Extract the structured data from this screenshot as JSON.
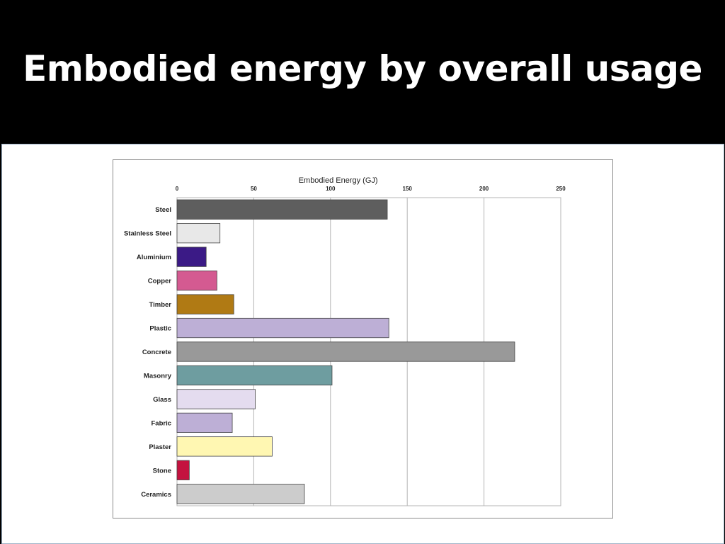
{
  "slide": {
    "title": "Embodied energy by overall usage"
  },
  "chart_data": {
    "type": "bar",
    "orientation": "horizontal",
    "xlabel": "Embodied Energy  (GJ)",
    "xlabel_position": "top",
    "xlim": [
      0,
      250
    ],
    "xticks": [
      0,
      50,
      100,
      150,
      200,
      250
    ],
    "grid": true,
    "categories": [
      "Steel",
      "Stainless Steel",
      "Aluminium",
      "Copper",
      "Timber",
      "Plastic",
      "Concrete",
      "Masonry",
      "Glass",
      "Fabric",
      "Plaster",
      "Stone",
      "Ceramics"
    ],
    "values": [
      137,
      28,
      19,
      26,
      37,
      138,
      220,
      101,
      51,
      36,
      62,
      8,
      83
    ],
    "colors": [
      "#5e5e5e",
      "#e8e8e8",
      "#3b1a86",
      "#d45a91",
      "#b07a14",
      "#bdafd6",
      "#999999",
      "#6e9da0",
      "#e4dcef",
      "#bdafd6",
      "#fff7b2",
      "#c4123f",
      "#cccccc"
    ]
  }
}
